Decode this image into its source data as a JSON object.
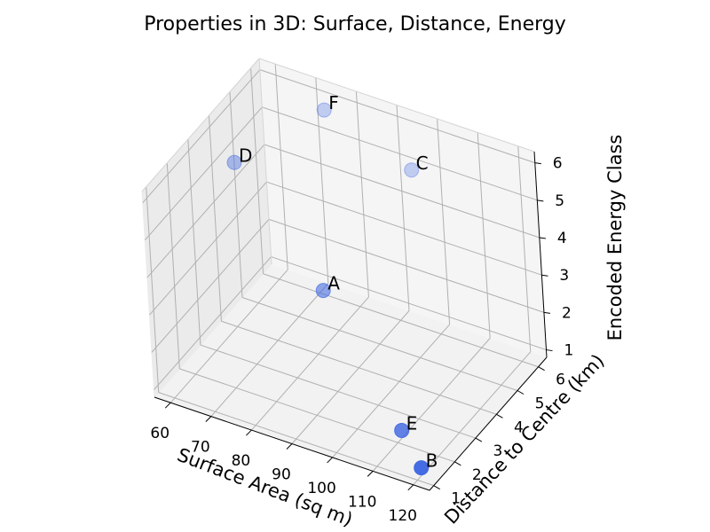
{
  "chart_data": {
    "type": "scatter3d",
    "title": "Properties in 3D: Surface, Distance, Energy",
    "xlabel": "Surface Area (sq m)",
    "ylabel": "Distance to Centre (km)",
    "zlabel": "Encoded Energy Class",
    "xlim": [
      56,
      124
    ],
    "ylim": [
      0.8,
      6.4
    ],
    "zlim": [
      0.8,
      6.3
    ],
    "xticks": [
      60,
      70,
      80,
      90,
      100,
      110,
      120
    ],
    "yticks": [
      1,
      2,
      3,
      4,
      5,
      6
    ],
    "zticks": [
      1,
      2,
      3,
      4,
      5,
      6
    ],
    "grid": true,
    "point_color": "#4169e1",
    "points": [
      {
        "label": "A",
        "x": 85,
        "y": 3.5,
        "z": 3
      },
      {
        "label": "B",
        "x": 120,
        "y": 1.2,
        "z": 1
      },
      {
        "label": "C",
        "x": 95,
        "y": 6,
        "z": 5
      },
      {
        "label": "D",
        "x": 60,
        "y": 4.3,
        "z": 5
      },
      {
        "label": "E",
        "x": 110,
        "y": 2.2,
        "z": 1
      },
      {
        "label": "F",
        "x": 75,
        "y": 5.8,
        "z": 6
      }
    ]
  }
}
